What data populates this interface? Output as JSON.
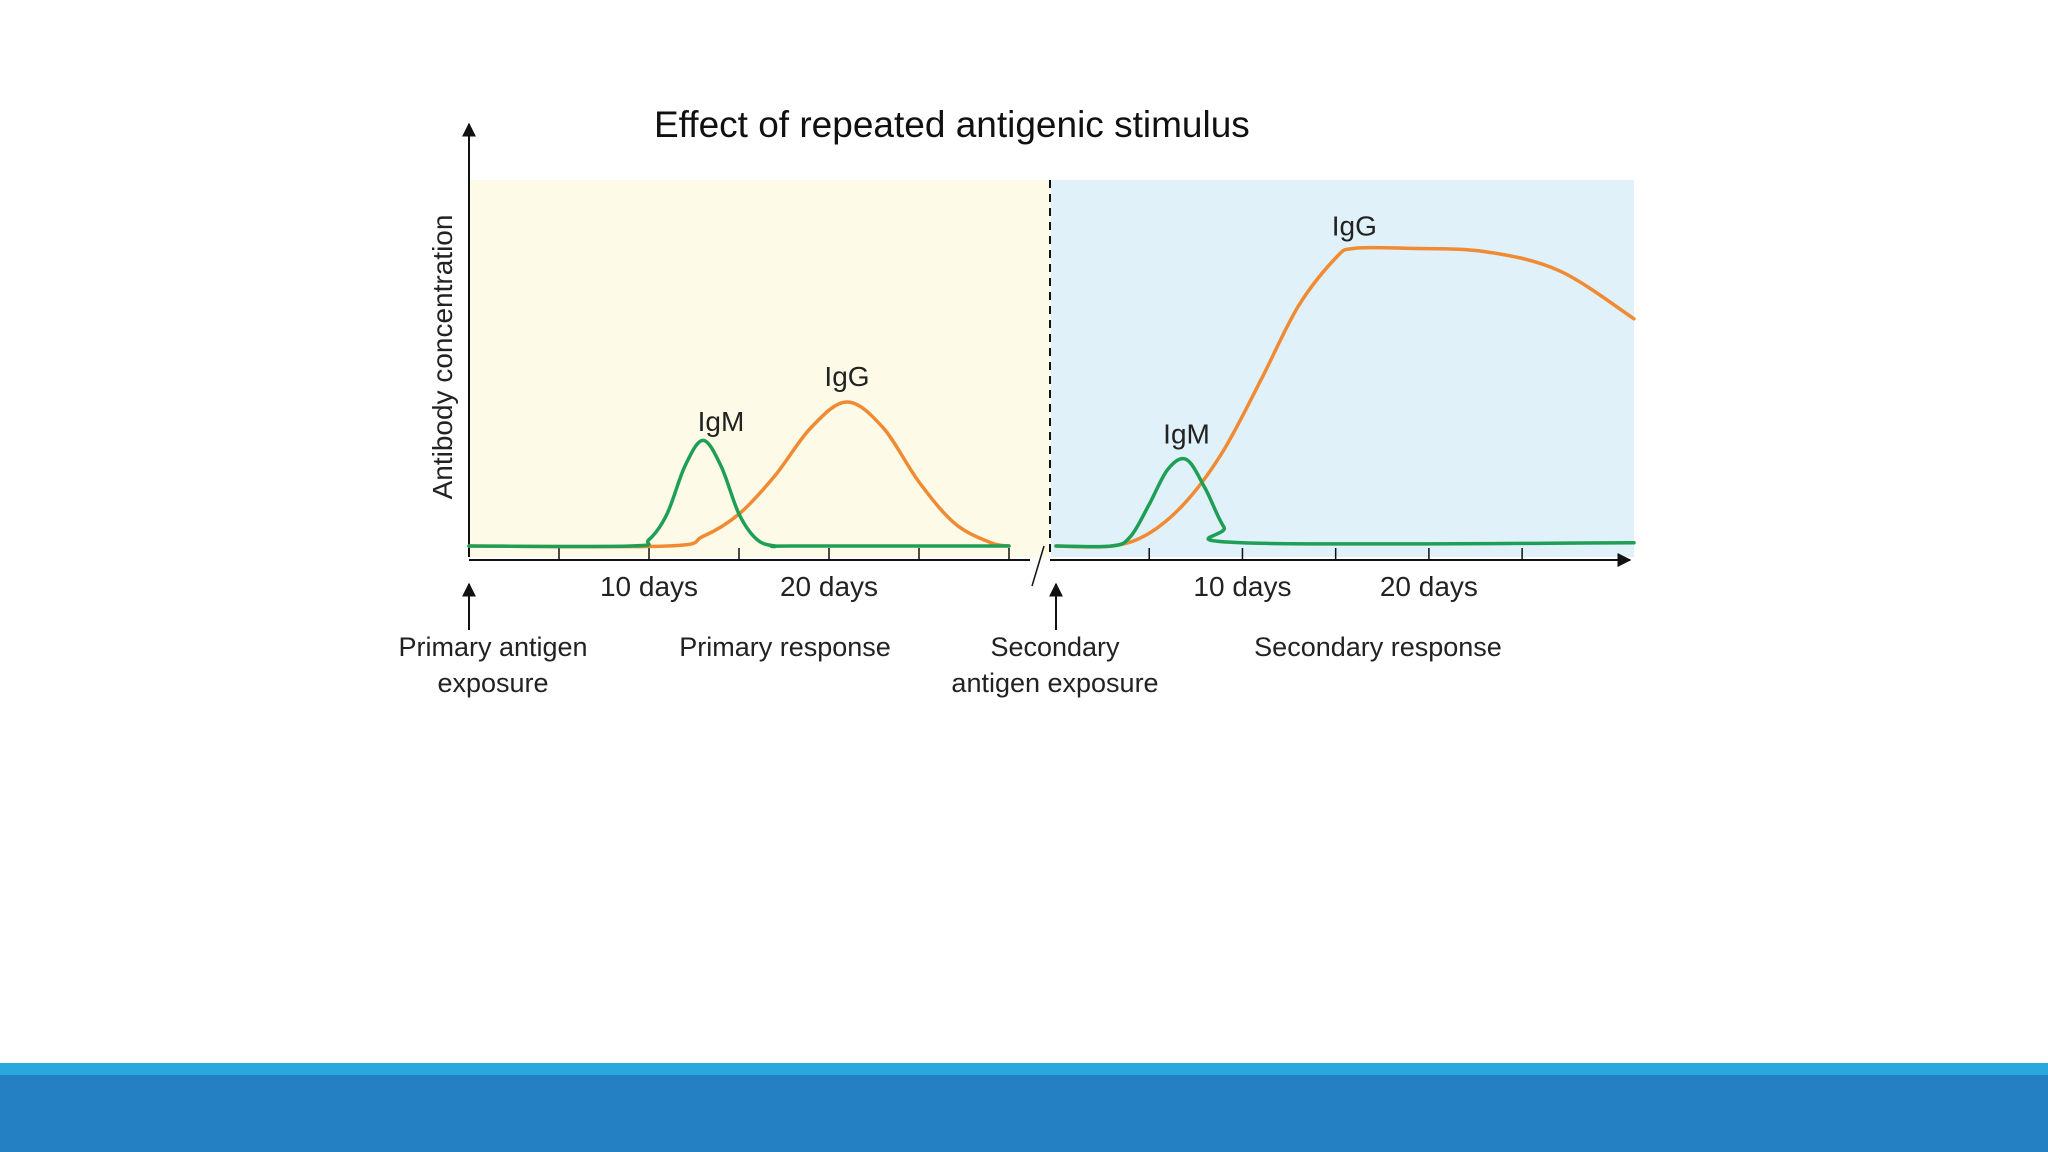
{
  "slide": {
    "title": "Effect of repeated antigenic stimulus"
  },
  "theme": {
    "primary_bg": "#fdfbe7",
    "secondary_bg": "#e0f1fa",
    "igg_color": "#f08a33",
    "igm_color": "#1f9e55",
    "footer_stripe": "#29a8e0",
    "footer_bar": "#2580c3"
  },
  "chart_data": {
    "type": "line",
    "title": "Effect of repeated antigenic stimulus",
    "ylabel": "Antibody concentration",
    "xlabel": "",
    "ylim": [
      0,
      100
    ],
    "x_unit": "days",
    "panels": [
      {
        "name": "primary",
        "xlim": [
          0,
          30
        ],
        "ticks": [
          5,
          10,
          15,
          20,
          25,
          30
        ],
        "tick_labels": [
          {
            "x": 10,
            "label": "10 days"
          },
          {
            "x": 20,
            "label": "20 days"
          }
        ],
        "series": [
          {
            "name": "IgM",
            "label": "IgM",
            "x": [
              0,
              9,
              10,
              11,
              12,
              13,
              14,
              15,
              16,
              17,
              18,
              30
            ],
            "y": [
              0,
              0,
              2,
              10,
              25,
              33,
              25,
              10,
              2,
              0,
              0,
              0
            ]
          },
          {
            "name": "IgG",
            "label": "IgG",
            "x": [
              0,
              11,
              13,
              15,
              17,
              19,
              21,
              23,
              25,
              27,
              29,
              30
            ],
            "y": [
              0,
              0,
              3,
              10,
              22,
              37,
              45,
              37,
              20,
              7,
              1,
              0
            ]
          }
        ],
        "series_labels": [
          {
            "text": "IgM",
            "x": 14,
            "y": 36
          },
          {
            "text": "IgG",
            "x": 21,
            "y": 50
          }
        ]
      },
      {
        "name": "secondary",
        "xlim": [
          0,
          31
        ],
        "ticks": [
          5,
          10,
          15,
          20,
          25
        ],
        "tick_labels": [
          {
            "x": 10,
            "label": "10 days"
          },
          {
            "x": 20,
            "label": "20 days"
          }
        ],
        "series": [
          {
            "name": "IgM",
            "label": "IgM",
            "x": [
              0,
              3,
              4,
              5,
              6,
              7,
              8,
              9,
              10,
              31
            ],
            "y": [
              0,
              0,
              3,
              13,
              24,
              27,
              18,
              6,
              1,
              1
            ]
          },
          {
            "name": "IgG",
            "label": "IgG",
            "x": [
              0,
              3,
              5,
              7,
              9,
              11,
              13,
              15,
              16,
              19,
              23,
              27,
              31
            ],
            "y": [
              0,
              0,
              4,
              14,
              30,
              52,
              75,
              90,
              93,
              93,
              92,
              86,
              71
            ]
          }
        ],
        "series_labels": [
          {
            "text": "IgM",
            "x": 7,
            "y": 32
          },
          {
            "text": "IgG",
            "x": 16,
            "y": 97
          }
        ]
      }
    ],
    "captions": {
      "primary_exposure": [
        "Primary antigen",
        "exposure"
      ],
      "primary_response": "Primary response",
      "secondary_exposure": [
        "Secondary",
        "antigen exposure"
      ],
      "secondary_response": "Secondary response"
    }
  }
}
